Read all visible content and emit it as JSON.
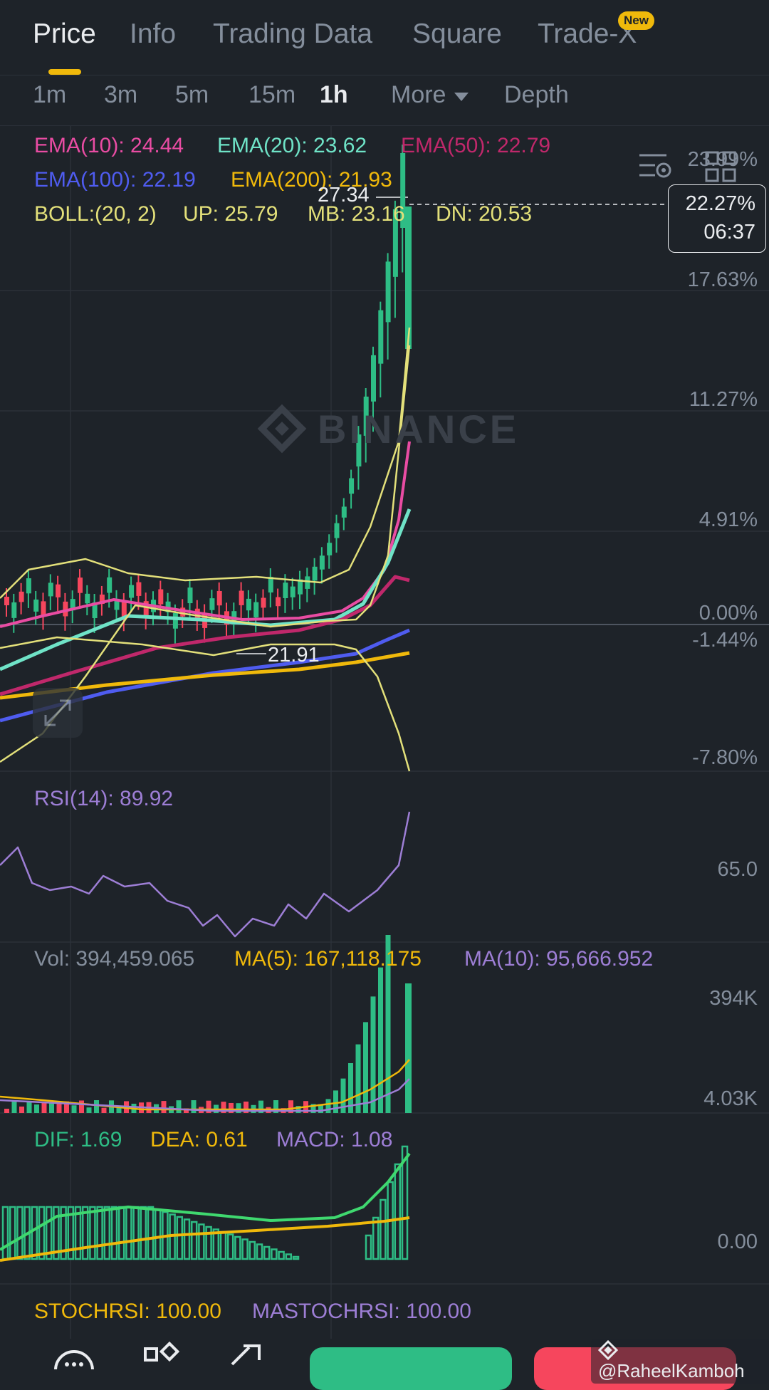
{
  "tabs": [
    {
      "label": "Price",
      "active": true
    },
    {
      "label": "Info"
    },
    {
      "label": "Trading Data"
    },
    {
      "label": "Square"
    },
    {
      "label": "Trade-X"
    }
  ],
  "new_badge": "New",
  "intervals": [
    "1m",
    "3m",
    "5m",
    "15m",
    "1h"
  ],
  "active_interval": "1h",
  "more_label": "More",
  "depth_label": "Depth",
  "ema": {
    "ema10": "EMA(10): 24.44",
    "ema20": "EMA(20): 23.62",
    "ema50": "EMA(50): 22.79",
    "ema100": "EMA(100): 22.19",
    "ema200": "EMA(200): 21.93"
  },
  "boll": {
    "label": "BOLL:(20, 2)",
    "up": "UP: 25.79",
    "mb": "MB: 23.16",
    "dn": "DN: 20.53"
  },
  "price_axis": [
    "23.99%",
    "17.63%",
    "11.27%",
    "4.91%",
    "0.00%",
    "-1.44%",
    "-7.80%"
  ],
  "current": {
    "percent": "22.27%",
    "countdown": "06:37"
  },
  "high_label": "27.34",
  "low_label": "21.91",
  "watermark": "BINANCE",
  "rsi": {
    "label": "RSI(14): 89.92",
    "axis": "65.0"
  },
  "volume": {
    "vol": "Vol: 394,459.065",
    "ma5": "MA(5): 167,118.175",
    "ma10": "MA(10): 95,666.952",
    "axis_top": "394K",
    "axis_bottom": "4.03K"
  },
  "macd": {
    "dif": "DIF: 1.69",
    "dea": "DEA: 0.61",
    "macd": "MACD: 1.08",
    "axis": "0.00"
  },
  "stochrsi": {
    "stoch": "STOCHRSI: 100.00",
    "mastoch": "MASTOCHRSI: 100.00"
  },
  "credit": "@RaheelKamboh",
  "colors": {
    "up": "#2ebd85",
    "down": "#f6465d",
    "ema10": "#e94ca3",
    "ema20": "#6fe3c7",
    "ema50": "#c0286b",
    "ema100": "#4f5cf0",
    "ema200": "#f0b90b",
    "boll": "#e3e07a",
    "purple": "#9d7ed5",
    "accent": "#f0b90b"
  }
}
